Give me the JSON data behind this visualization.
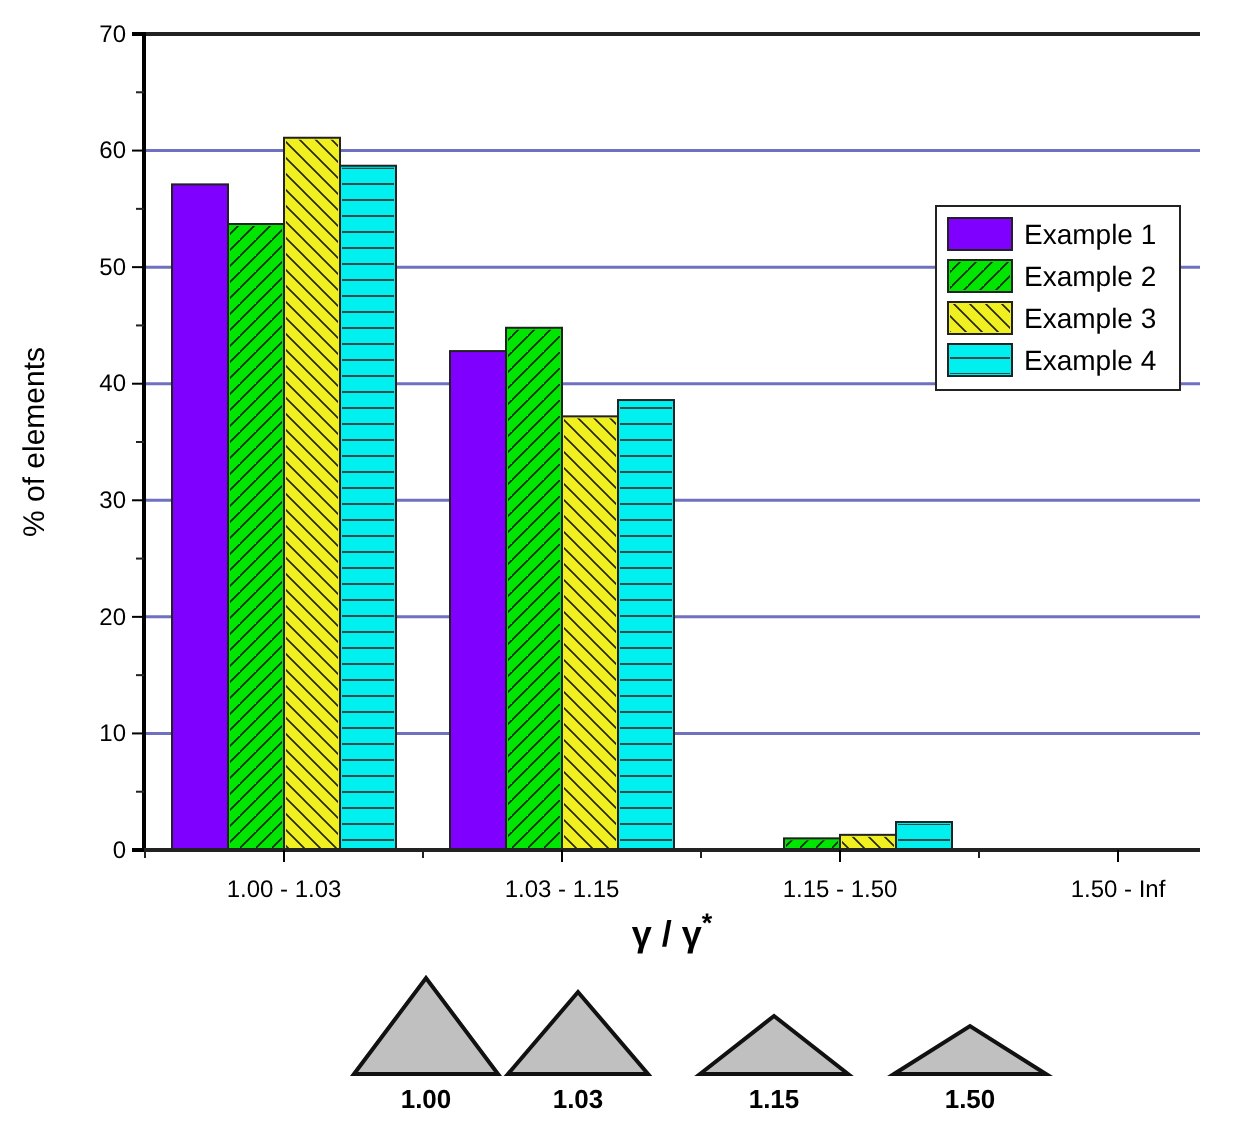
{
  "chart_data": {
    "type": "bar",
    "xlabel": "γ / γ$^{*}$",
    "ylabel": "% of elements",
    "categories": [
      "1.00 - 1.03",
      "1.03 - 1.15",
      "1.15 - 1.50",
      "1.50 - Inf"
    ],
    "series": [
      {
        "name": "Example 1",
        "color": "#7f00ff",
        "values": [
          57.1,
          42.8,
          0,
          0
        ]
      },
      {
        "name": "Example 2",
        "color": "#00e600",
        "values": [
          53.7,
          44.8,
          1,
          0
        ]
      },
      {
        "name": "Example 3",
        "color": "#f0f020",
        "values": [
          61.1,
          37.2,
          1.3,
          0
        ]
      },
      {
        "name": "Example 4",
        "color": "#00f0f0",
        "values": [
          58.7,
          38.6,
          2.4,
          0
        ]
      }
    ],
    "ylim": [
      0,
      70
    ],
    "yticks": [
      0,
      10,
      20,
      30,
      40,
      50,
      60,
      70
    ],
    "grid": "y",
    "legend": "top right",
    "annotations": [
      "1.00",
      "1.03",
      "1.15",
      "1.50"
    ]
  }
}
